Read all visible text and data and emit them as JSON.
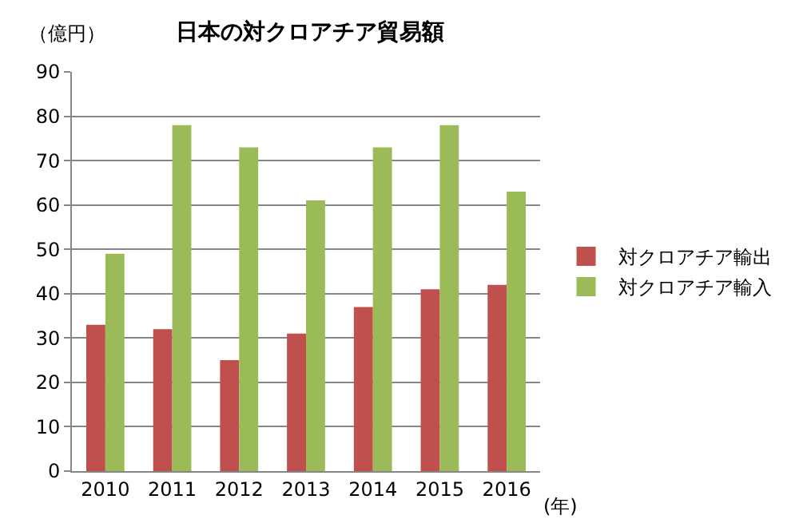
{
  "chart_data": {
    "type": "bar",
    "title": "日本の対クロアチア貿易額",
    "ylabel": "（億円）",
    "xlabel": "(年)",
    "categories": [
      "2010",
      "2011",
      "2012",
      "2013",
      "2014",
      "2015",
      "2016"
    ],
    "series": [
      {
        "name": "対クロアチア輸出",
        "color": "#c0504d",
        "values": [
          33,
          32,
          25,
          31,
          37,
          41,
          42
        ]
      },
      {
        "name": "対クロアチア輸入",
        "color": "#9bbb59",
        "values": [
          49,
          78,
          73,
          61,
          73,
          78,
          63
        ]
      }
    ],
    "ylim": [
      0,
      90
    ],
    "yticks": [
      0,
      10,
      20,
      30,
      40,
      50,
      60,
      70,
      80,
      90
    ],
    "grid": "y",
    "legend": "right"
  }
}
